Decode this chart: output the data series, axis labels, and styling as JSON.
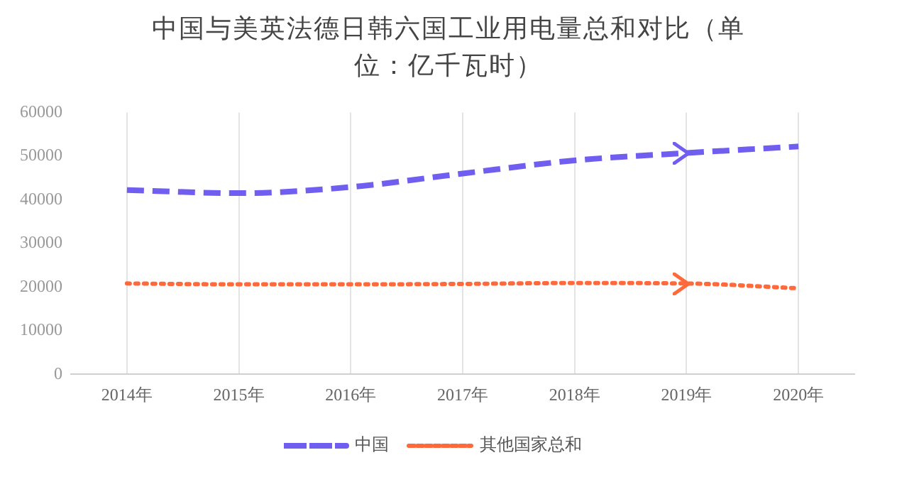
{
  "chart_data": {
    "type": "line",
    "title": "中国与美英法德日韩六国工业用电量总和对比（单位：亿千瓦时）",
    "categories": [
      "2014年",
      "2015年",
      "2016年",
      "2017年",
      "2018年",
      "2019年",
      "2020年"
    ],
    "series": [
      {
        "name": "中国",
        "color": "#6f5ef0",
        "line_style": "dashed",
        "values": [
          42200,
          41500,
          42900,
          46000,
          49000,
          50700,
          52200
        ]
      },
      {
        "name": "其他国家总和",
        "color": "#ff6a3d",
        "line_style": "dotted",
        "values": [
          20800,
          20600,
          20600,
          20700,
          20900,
          20800,
          19700
        ]
      }
    ],
    "ylim": [
      0,
      60000
    ],
    "yticks": [
      0,
      10000,
      20000,
      30000,
      40000,
      50000,
      60000
    ],
    "grid": "x",
    "legend": "bottom",
    "marker": "none"
  }
}
